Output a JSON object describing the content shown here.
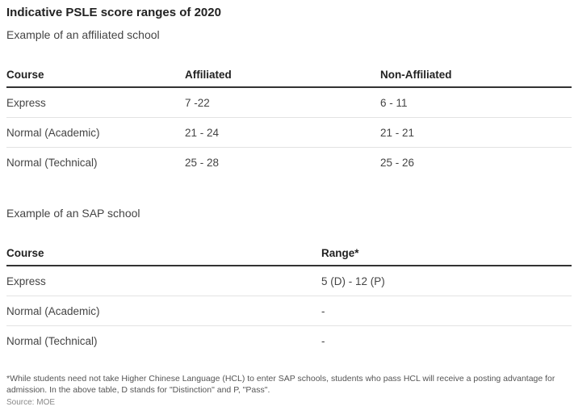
{
  "title": "Indicative PSLE score ranges of 2020",
  "section1": {
    "subtitle": "Example of an affiliated school",
    "headers": [
      "Course",
      "Affiliated",
      "Non-Affiliated"
    ],
    "rows": [
      [
        "Express",
        "7 -22",
        "6 - 11"
      ],
      [
        "Normal (Academic)",
        "21 - 24",
        "21 - 21"
      ],
      [
        "Normal (Technical)",
        "25 - 28",
        "25 - 26"
      ]
    ]
  },
  "section2": {
    "subtitle": "Example of an SAP school",
    "headers": [
      "Course",
      "Range*"
    ],
    "rows": [
      [
        "Express",
        "5 (D) - 12 (P)"
      ],
      [
        "Normal (Academic)",
        "-"
      ],
      [
        "Normal (Technical)",
        "-"
      ]
    ]
  },
  "footnote": "*While students need not take Higher Chinese Language (HCL) to enter SAP schools, students who pass HCL will receive a posting advantage for admission. In the above table, D stands for \"Distinction\" and P, \"Pass\".",
  "source": "Source: MOE"
}
